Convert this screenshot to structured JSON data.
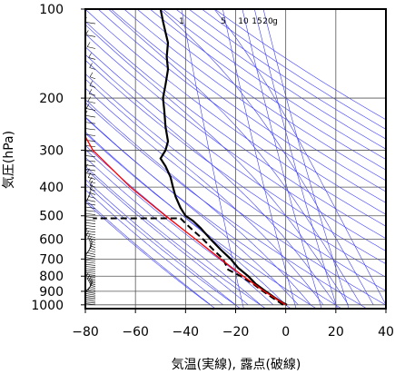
{
  "chart_data": {
    "type": "line",
    "title": "",
    "xlabel": "気温(実線), 露点(破線)",
    "ylabel": "気圧(hPa)",
    "xlim": [
      -80,
      40
    ],
    "ylim": [
      1030,
      100
    ],
    "y_scale": "log",
    "grid": true,
    "x_ticks": [
      "−80",
      "−60",
      "−40",
      "−20",
      "0",
      "20",
      "40"
    ],
    "y_ticks": [
      "100",
      "200",
      "300",
      "400",
      "500",
      "600",
      "700",
      "800",
      "900",
      "1000"
    ],
    "mixing_ratio_labels": [
      "1",
      "5",
      "10",
      "15",
      "20",
      "g"
    ],
    "colors": {
      "temperature": "#000000",
      "dewpoint": "#000000",
      "parcel": "#ff0000",
      "isopleths": "#3b3bff",
      "grid": "#000000"
    },
    "series": [
      {
        "role": "temperature",
        "style": "solid",
        "points": [
          {
            "p": 1000,
            "t": 0.5
          },
          {
            "p": 975,
            "t": -2
          },
          {
            "p": 950,
            "t": -4
          },
          {
            "p": 925,
            "t": -6
          },
          {
            "p": 900,
            "t": -8
          },
          {
            "p": 850,
            "t": -12
          },
          {
            "p": 800,
            "t": -15
          },
          {
            "p": 750,
            "t": -19
          },
          {
            "p": 700,
            "t": -22
          },
          {
            "p": 650,
            "t": -26
          },
          {
            "p": 600,
            "t": -30
          },
          {
            "p": 550,
            "t": -34
          },
          {
            "p": 520,
            "t": -37
          },
          {
            "p": 500,
            "t": -40
          },
          {
            "p": 470,
            "t": -42
          },
          {
            "p": 430,
            "t": -44
          },
          {
            "p": 400,
            "t": -45
          },
          {
            "p": 370,
            "t": -46
          },
          {
            "p": 340,
            "t": -48
          },
          {
            "p": 320,
            "t": -50
          },
          {
            "p": 300,
            "t": -48
          },
          {
            "p": 280,
            "t": -47
          },
          {
            "p": 250,
            "t": -48
          },
          {
            "p": 220,
            "t": -48.5
          },
          {
            "p": 200,
            "t": -49
          },
          {
            "p": 180,
            "t": -48
          },
          {
            "p": 160,
            "t": -47
          },
          {
            "p": 145,
            "t": -47.5
          },
          {
            "p": 130,
            "t": -47
          },
          {
            "p": 120,
            "t": -48
          },
          {
            "p": 110,
            "t": -49
          },
          {
            "p": 100,
            "t": -50
          }
        ]
      },
      {
        "role": "dewpoint",
        "style": "dashed",
        "points": [
          {
            "p": 1000,
            "t": -1
          },
          {
            "p": 975,
            "t": -3
          },
          {
            "p": 950,
            "t": -5
          },
          {
            "p": 925,
            "t": -7
          },
          {
            "p": 900,
            "t": -9
          },
          {
            "p": 850,
            "t": -13
          },
          {
            "p": 800,
            "t": -18
          },
          {
            "p": 760,
            "t": -23
          },
          {
            "p": 730,
            "t": -24
          },
          {
            "p": 700,
            "t": -25
          },
          {
            "p": 650,
            "t": -29
          },
          {
            "p": 600,
            "t": -33
          },
          {
            "p": 560,
            "t": -37
          },
          {
            "p": 530,
            "t": -40
          },
          {
            "p": 510,
            "t": -42
          },
          {
            "p": 510,
            "t": -77
          }
        ]
      },
      {
        "role": "parcel",
        "style": "solid",
        "points": [
          {
            "p": 1000,
            "t": 0
          },
          {
            "p": 900,
            "t": -8.5
          },
          {
            "p": 800,
            "t": -17
          },
          {
            "p": 700,
            "t": -26
          },
          {
            "p": 600,
            "t": -36
          },
          {
            "p": 500,
            "t": -48
          },
          {
            "p": 400,
            "t": -62
          },
          {
            "p": 300,
            "t": -77
          },
          {
            "p": 270,
            "t": -80
          }
        ]
      }
    ]
  }
}
